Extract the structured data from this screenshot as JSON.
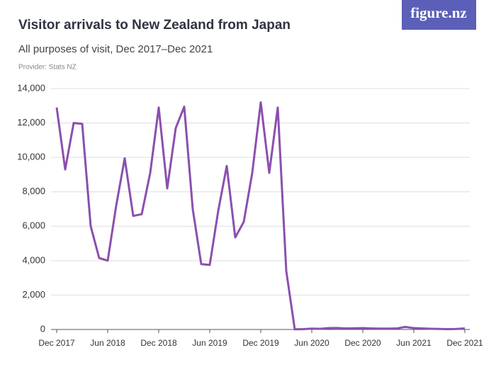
{
  "logo": "figure.nz",
  "chart_data": {
    "type": "line",
    "title": "Visitor arrivals to New Zealand from Japan",
    "subtitle": "All purposes of visit, Dec 2017–Dec 2021",
    "provider": "Provider: Stats NZ",
    "categories": [
      "Dec 2017",
      null,
      null,
      null,
      null,
      null,
      "Jun 2018",
      null,
      null,
      null,
      null,
      null,
      "Dec 2018",
      null,
      null,
      null,
      null,
      null,
      "Jun 2019",
      null,
      null,
      null,
      null,
      null,
      "Dec 2019",
      null,
      null,
      null,
      null,
      null,
      "Jun 2020",
      null,
      null,
      null,
      null,
      null,
      "Dec 2020",
      null,
      null,
      null,
      null,
      null,
      "Jun 2021",
      null,
      null,
      null,
      null,
      null,
      "Dec 2021"
    ],
    "series": [
      {
        "name": "Visitor arrivals",
        "color": "#8b4fae",
        "values": [
          12900,
          9300,
          12000,
          11950,
          6000,
          4150,
          4000,
          7200,
          9950,
          6600,
          6700,
          9100,
          12900,
          8200,
          11700,
          12950,
          7000,
          3800,
          3750,
          6900,
          9500,
          5350,
          6250,
          9100,
          13200,
          9100,
          12900,
          3400,
          10,
          20,
          50,
          40,
          80,
          90,
          60,
          70,
          80,
          60,
          50,
          50,
          60,
          150,
          80,
          60,
          40,
          30,
          20,
          30,
          60
        ]
      }
    ],
    "ylim": [
      0,
      14000
    ],
    "yticks": [
      0,
      {
        "value": 2000,
        "label": "2,000"
      },
      {
        "value": 4000,
        "label": "4,000"
      },
      {
        "value": 6000,
        "label": "6,000"
      },
      {
        "value": 8000,
        "label": "8,000"
      },
      {
        "value": 10000,
        "label": "10,000"
      },
      {
        "value": 12000,
        "label": "12,000"
      },
      {
        "value": 14000,
        "label": "14,000"
      }
    ],
    "grid": true
  }
}
